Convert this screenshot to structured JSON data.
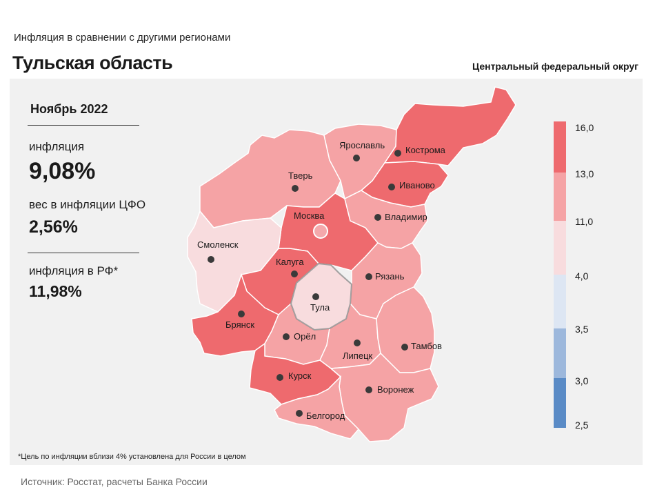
{
  "header": {
    "subtitle": "Инфляция  в сравнении  с другими  регионами",
    "title": "Тульская область",
    "district": "Центральный федеральный округ"
  },
  "stats": {
    "period": "Ноябрь 2022",
    "inflation_label": "инфляция",
    "inflation_value": "9,08%",
    "weight_label": "вес в инфляции  ЦФО",
    "weight_value": "2,56%",
    "rf_label": "инфляция  в РФ*",
    "rf_value": "11,98%"
  },
  "legend": {
    "ticks": [
      "16,0",
      "13,0",
      "11,0",
      "4,0",
      "3,5",
      "3,0",
      "2,5"
    ],
    "colors": [
      "#ee6a6e",
      "#f5a3a5",
      "#f8dcde",
      "#dde6f3",
      "#9db8dc",
      "#5a8bc6"
    ]
  },
  "regions": [
    {
      "name": "Тверь",
      "color": "#f5a3a5"
    },
    {
      "name": "Ярославль",
      "color": "#f5a3a5"
    },
    {
      "name": "Кострома",
      "color": "#ee6a6e"
    },
    {
      "name": "Иваново",
      "color": "#ee6a6e"
    },
    {
      "name": "Москва",
      "color": "#ee6a6e"
    },
    {
      "name": "Владимир",
      "color": "#f5a3a5"
    },
    {
      "name": "Смоленск",
      "color": "#f8dcde"
    },
    {
      "name": "Калуга",
      "color": "#ee6a6e"
    },
    {
      "name": "Тула",
      "color": "#f8dcde"
    },
    {
      "name": "Рязань",
      "color": "#f5a3a5"
    },
    {
      "name": "Брянск",
      "color": "#ee6a6e"
    },
    {
      "name": "Орёл",
      "color": "#f5a3a5"
    },
    {
      "name": "Липецк",
      "color": "#f5a3a5"
    },
    {
      "name": "Тамбов",
      "color": "#f5a3a5"
    },
    {
      "name": "Курск",
      "color": "#ee6a6e"
    },
    {
      "name": "Воронеж",
      "color": "#f5a3a5"
    },
    {
      "name": "Белгород",
      "color": "#f5a3a5"
    }
  ],
  "footnote": "*Цель по инфляции вблизи 4% установлена для России в целом",
  "source": "Источник: Росстат, расчеты Банка России"
}
